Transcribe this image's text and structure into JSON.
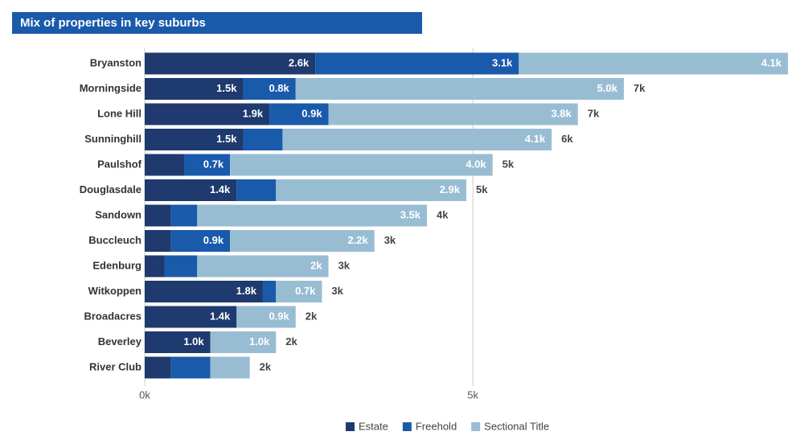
{
  "chart_data": {
    "type": "stacked-bar-horizontal",
    "title": "Mix of properties in key suburbs",
    "categories": [
      "Bryanston",
      "Morningside",
      "Lone Hill",
      "Sunninghill",
      "Paulshof",
      "Douglasdale",
      "Sandown",
      "Buccleuch",
      "Edenburg",
      "Witkoppen",
      "Broadacres",
      "Beverley",
      "River Club"
    ],
    "series": [
      {
        "name": "Estate",
        "color": "#1f3a6e",
        "values": [
          2600,
          1500,
          1900,
          1500,
          600,
          1400,
          400,
          400,
          300,
          1800,
          1400,
          1000,
          400
        ],
        "value_labels": [
          "2.6k",
          "1.5k",
          "1.9k",
          "1.5k",
          null,
          "1.4k",
          null,
          null,
          null,
          "1.8k",
          "1.4k",
          "1.0k",
          null
        ]
      },
      {
        "name": "Freehold",
        "color": "#1a5aab",
        "values": [
          3100,
          800,
          900,
          600,
          700,
          600,
          400,
          900,
          500,
          200,
          0,
          0,
          600
        ],
        "value_labels": [
          "3.1k",
          "0.8k",
          "0.9k",
          null,
          "0.7k",
          null,
          null,
          "0.9k",
          null,
          null,
          null,
          null,
          null
        ]
      },
      {
        "name": "Sectional Title",
        "color": "#98bdd3",
        "values": [
          4100,
          5000,
          3800,
          4100,
          4000,
          2900,
          3500,
          2200,
          2000,
          700,
          900,
          1000,
          600
        ],
        "value_labels": [
          "4.1k",
          "5.0k",
          "3.8k",
          "4.1k",
          "4.0k",
          "2.9k",
          "3.5k",
          "2.2k",
          "2k",
          "0.7k",
          "0.9k",
          "1.0k",
          null
        ]
      }
    ],
    "totals": [
      9800,
      7300,
      6600,
      6200,
      5300,
      4900,
      4300,
      3500,
      2800,
      2700,
      2300,
      2000,
      1600
    ],
    "total_labels": [
      null,
      "7k",
      "7k",
      "6k",
      "5k",
      "5k",
      "4k",
      "3k",
      "3k",
      "3k",
      "2k",
      "2k",
      "2k"
    ],
    "xlim": [
      0,
      9800
    ],
    "xticks": [
      {
        "value": 0,
        "label": "0k"
      },
      {
        "value": 5000,
        "label": "5k"
      }
    ],
    "grid": true,
    "legend": "bottom"
  }
}
